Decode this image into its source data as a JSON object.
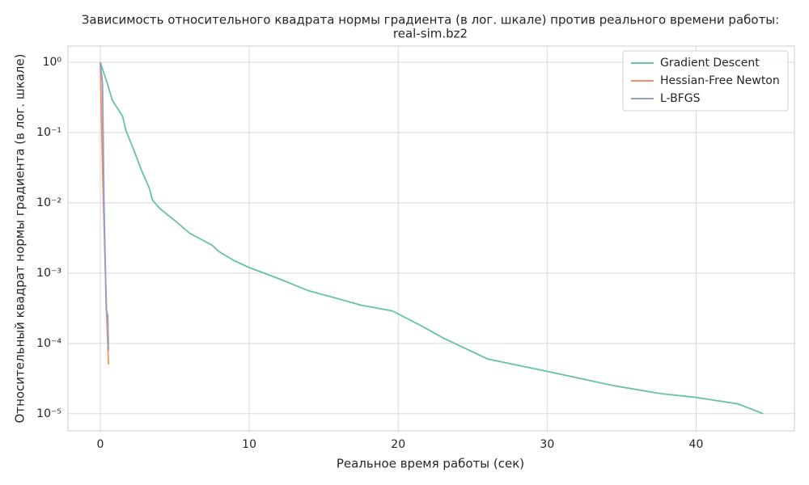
{
  "chart_data": {
    "type": "line",
    "title": "Зависимость относительного квадрата нормы градиента (в лог. шкале) против реального времени работы:",
    "subtitle": "real-sim.bz2",
    "xlabel": "Реальное время работы (сек)",
    "ylabel": "Относительный квадрат нормы градиента (в лог. шкале)",
    "yscale": "log",
    "grid": true,
    "legend": "upper right",
    "xlim": [
      -2.17,
      46.6
    ],
    "ylim": [
      5.7e-06,
      1.7
    ],
    "xticks": [
      0,
      10,
      20,
      30,
      40
    ],
    "yticks": [
      {
        "value": 1,
        "label": "10⁰"
      },
      {
        "value": 0.1,
        "label": "10⁻¹"
      },
      {
        "value": 0.01,
        "label": "10⁻²"
      },
      {
        "value": 0.001,
        "label": "10⁻³"
      },
      {
        "value": 0.0001,
        "label": "10⁻⁴"
      },
      {
        "value": 1e-05,
        "label": "10⁻⁵"
      }
    ],
    "series": [
      {
        "name": "Gradient Descent",
        "color": "#66c2a5",
        "x": [
          0,
          0.5,
          0.8,
          1.5,
          1.7,
          2.3,
          2.8,
          3.3,
          3.5,
          4.0,
          5.0,
          6.0,
          7.5,
          8.0,
          9.0,
          10,
          12,
          14,
          16,
          17.5,
          19.6,
          21.5,
          23,
          26,
          30,
          34.5,
          37.5,
          40,
          42.8,
          44.5
        ],
        "values": [
          1,
          0.48,
          0.29,
          0.17,
          0.11,
          0.053,
          0.028,
          0.016,
          0.011,
          0.0083,
          0.0056,
          0.0037,
          0.0025,
          0.002,
          0.0015,
          0.0012,
          0.00083,
          0.00056,
          0.00043,
          0.00035,
          0.00029,
          0.00018,
          0.00012,
          6e-05,
          4e-05,
          2.5e-05,
          1.95e-05,
          1.7e-05,
          1.38e-05,
          1e-05
        ]
      },
      {
        "name": "Hessian-Free Newton",
        "color": "#fc8d62",
        "x": [
          0,
          0.15,
          0.3,
          0.45,
          0.55
        ],
        "values": [
          1,
          0.03,
          0.002,
          0.0002,
          5e-05
        ]
      },
      {
        "name": "L-BFGS",
        "color": "#8da0cb",
        "x": [
          0,
          0.15,
          0.25,
          0.4,
          0.5,
          0.55
        ],
        "values": [
          1,
          0.5,
          0.01,
          0.0003,
          0.00025,
          8e-05
        ]
      }
    ]
  }
}
